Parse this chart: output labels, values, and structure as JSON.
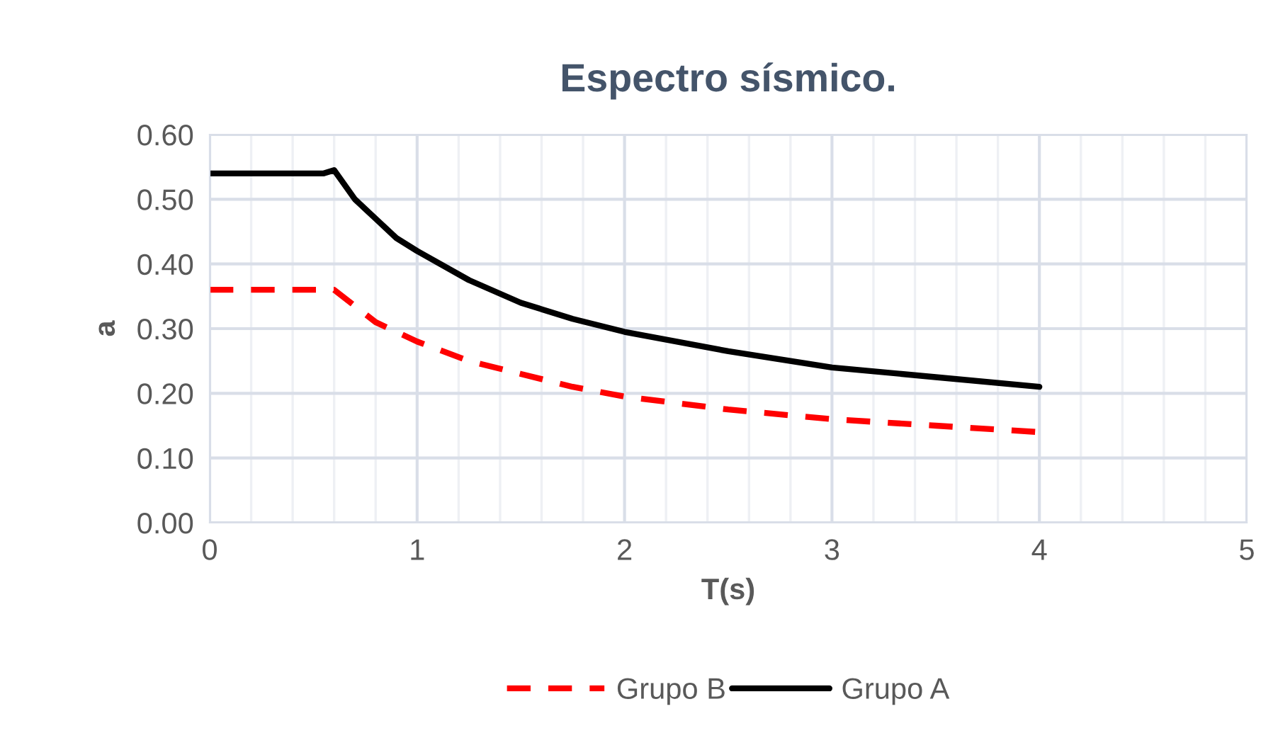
{
  "chart_data": {
    "type": "line",
    "title": "Espectro sísmico.",
    "xlabel": "T(s)",
    "ylabel": "a",
    "xlim": [
      0,
      5
    ],
    "xticks": [
      0,
      1,
      2,
      3,
      4,
      5
    ],
    "ylim": [
      0,
      0.6
    ],
    "yticks": [
      {
        "value": 0,
        "label": "0.00"
      },
      {
        "value": 0.1,
        "label": "0.10"
      },
      {
        "value": 0.2,
        "label": "0.20"
      },
      {
        "value": 0.3,
        "label": "0.30"
      },
      {
        "value": 0.4,
        "label": "0.40"
      },
      {
        "value": 0.5,
        "label": "0.50"
      },
      {
        "value": 0.6,
        "label": "0.60"
      }
    ],
    "grid": true,
    "legend": "bottom",
    "marker": "none",
    "x": [
      0,
      0.5,
      0.55,
      0.6,
      0.7,
      0.8,
      0.9,
      1,
      1.25,
      1.5,
      1.75,
      2,
      2.5,
      3,
      3.5,
      4
    ],
    "series": [
      {
        "name": "Grupo B",
        "color": "#ff0000",
        "line_style": "dashed",
        "values": [
          0.36,
          0.36,
          0.36,
          0.36,
          0.335,
          0.31,
          0.295,
          0.28,
          0.25,
          0.23,
          0.21,
          0.195,
          0.175,
          0.16,
          0.15,
          0.14
        ]
      },
      {
        "name": "Grupo A",
        "color": "#000000",
        "line_style": "solid",
        "values": [
          0.54,
          0.54,
          0.54,
          0.545,
          0.5,
          0.47,
          0.44,
          0.42,
          0.375,
          0.34,
          0.315,
          0.295,
          0.265,
          0.24,
          0.225,
          0.21
        ]
      }
    ]
  }
}
